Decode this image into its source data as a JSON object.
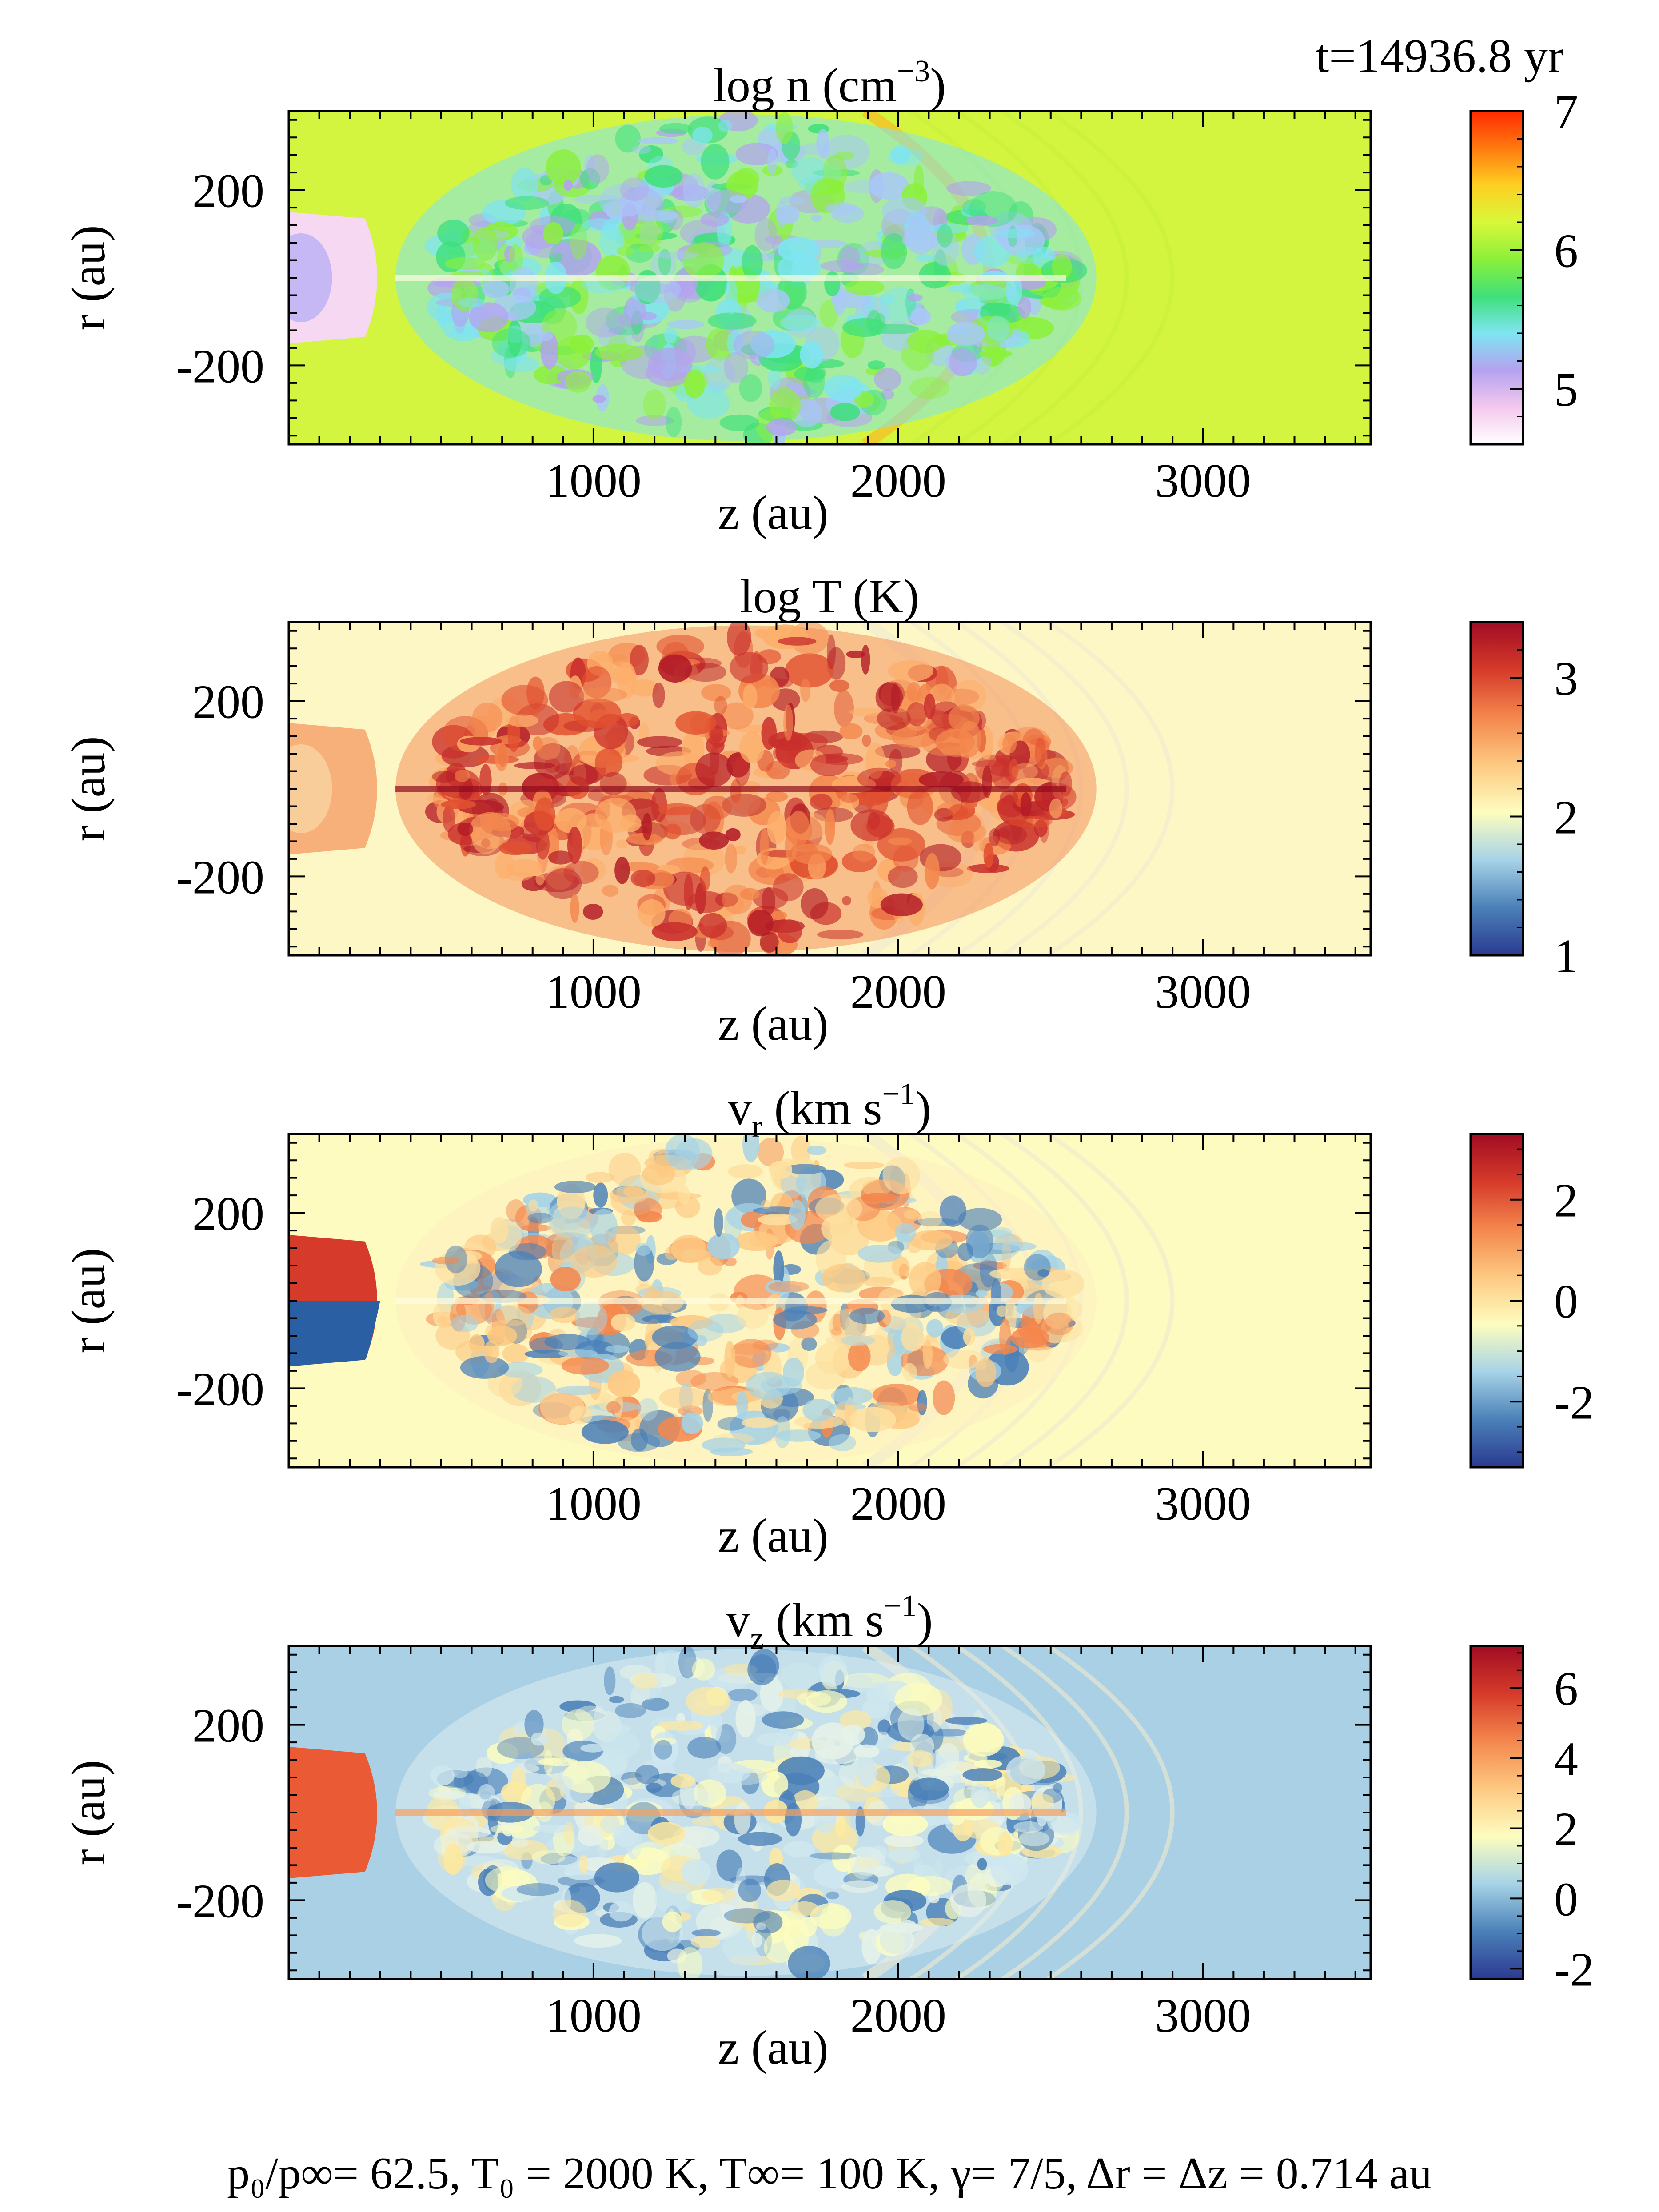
{
  "figure": {
    "time_label": "t=14936.8 yr",
    "footer": "p₀/p∞= 62.5, T₀ = 2000 K, T∞= 100 K, γ= 7/5, Δr = Δz = 0.714 au"
  },
  "chart_data": [
    {
      "type": "heatmap",
      "title_main": "log n (cm",
      "title_sup": "−3",
      "title_end": ")",
      "xlabel": "z (au)",
      "ylabel": "r (au)",
      "xlim": [
        0,
        3550
      ],
      "ylim": [
        -380,
        380
      ],
      "xticks": [
        1000,
        2000,
        3000
      ],
      "xtick_labels": [
        "1000",
        "2000",
        "3000"
      ],
      "yticks": [
        200,
        -200
      ],
      "ytick_labels": [
        "200",
        "-200"
      ],
      "colorbar": {
        "range": [
          4.6,
          7.0
        ],
        "ticks": [
          7,
          6,
          5
        ],
        "tick_labels": [
          "7",
          "6",
          "5"
        ],
        "colors": [
          "#ffffff",
          "#f4c8ee",
          "#b4a2f0",
          "#7fe4f2",
          "#3fe07a",
          "#8cf03a",
          "#d8f83a",
          "#ffcf22",
          "#ff7a10",
          "#ff2a00"
        ]
      },
      "background": "#d3f53f"
    },
    {
      "type": "heatmap",
      "title_main": "log T (K)",
      "title_sup": "",
      "title_end": "",
      "xlabel": "z (au)",
      "ylabel": "r (au)",
      "xlim": [
        0,
        3550
      ],
      "ylim": [
        -380,
        380
      ],
      "xticks": [
        1000,
        2000,
        3000
      ],
      "xtick_labels": [
        "1000",
        "2000",
        "3000"
      ],
      "yticks": [
        200,
        -200
      ],
      "ytick_labels": [
        "200",
        "-200"
      ],
      "colorbar": {
        "range": [
          1.0,
          3.4
        ],
        "ticks": [
          3,
          2,
          1
        ],
        "tick_labels": [
          "3",
          "2",
          "1"
        ],
        "colors": [
          "#2b3a91",
          "#4a80b8",
          "#a6d3e6",
          "#fdfdbf",
          "#fdc982",
          "#f4874d",
          "#d63a2a",
          "#a10c23"
        ]
      },
      "background": "#fdf7c6"
    },
    {
      "type": "heatmap",
      "title_main": "v",
      "title_sub": "r",
      "title_rest": " (km s",
      "title_sup": "−1",
      "title_end": ")",
      "xlabel": "z (au)",
      "ylabel": "r (au)",
      "xlim": [
        0,
        3550
      ],
      "ylim": [
        -380,
        380
      ],
      "xticks": [
        1000,
        2000,
        3000
      ],
      "xtick_labels": [
        "1000",
        "2000",
        "3000"
      ],
      "yticks": [
        200,
        -200
      ],
      "ytick_labels": [
        "200",
        "-200"
      ],
      "colorbar": {
        "range": [
          -3.3,
          3.3
        ],
        "ticks": [
          2,
          0,
          -2
        ],
        "tick_labels": [
          "2",
          "0",
          "-2"
        ],
        "colors": [
          "#2b3a91",
          "#4a80b8",
          "#a6d3e6",
          "#fdfdbf",
          "#fdc982",
          "#f4874d",
          "#d63a2a",
          "#a10c23"
        ]
      },
      "background": "#fdfbc0"
    },
    {
      "type": "heatmap",
      "title_main": "v",
      "title_sub": "z",
      "title_rest": " (km s",
      "title_sup": "−1",
      "title_end": ")",
      "xlabel": "z (au)",
      "ylabel": "r (au)",
      "xlim": [
        0,
        3550
      ],
      "ylim": [
        -380,
        380
      ],
      "xticks": [
        1000,
        2000,
        3000
      ],
      "xtick_labels": [
        "1000",
        "2000",
        "3000"
      ],
      "yticks": [
        200,
        -200
      ],
      "ytick_labels": [
        "200",
        "-200"
      ],
      "colorbar": {
        "range": [
          -2.3,
          7.2
        ],
        "ticks": [
          6,
          4,
          2,
          0,
          -2
        ],
        "tick_labels": [
          "6",
          "4",
          "2",
          "0",
          "-2"
        ],
        "colors": [
          "#2b3a91",
          "#4a80b8",
          "#a6d3e6",
          "#fdfdbf",
          "#fdc982",
          "#f4874d",
          "#d63a2a",
          "#a10c23"
        ]
      },
      "background": "#a9d0e4"
    }
  ]
}
